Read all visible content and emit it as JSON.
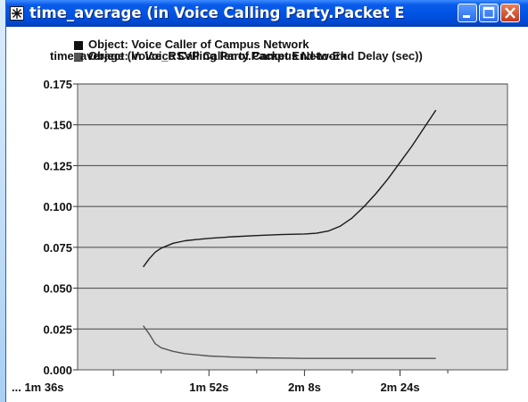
{
  "window": {
    "title": "time_average (in Voice Calling Party.Packet End...",
    "title_bar_color": "#0052e3"
  },
  "legend": [
    {
      "label": "Object: Voice Caller of Campus Network",
      "color": "#111111"
    },
    {
      "label": "Object: Voice_RSVP Caller of Campus Network",
      "color": "#555555"
    }
  ],
  "chart_data": {
    "type": "line",
    "title": "time_average (in Voice Calling Party.Packet End-to-End Delay (sec))",
    "xlabel": "",
    "ylabel": "",
    "xlim_seconds": [
      90,
      162
    ],
    "ylim": [
      0,
      0.175
    ],
    "x_ticks": [
      {
        "label": "... 1m 36s",
        "seconds": 96
      },
      {
        "label": "1m 52s",
        "seconds": 112
      },
      {
        "label": "2m 8s",
        "seconds": 128
      },
      {
        "label": "2m 24s",
        "seconds": 144
      }
    ],
    "y_ticks": [
      "0.000",
      "0.025",
      "0.050",
      "0.075",
      "0.100",
      "0.125",
      "0.150",
      "0.175"
    ],
    "grid": true,
    "plot_background": "#dcdcdc",
    "series": [
      {
        "name": "Object: Voice Caller of Campus Network",
        "color": "#1a1a1a",
        "x": [
          101,
          102,
          103,
          104,
          106,
          108,
          110,
          112,
          116,
          120,
          124,
          128,
          130,
          132,
          134,
          136,
          138,
          140,
          142,
          144,
          146,
          148,
          150
        ],
        "y": [
          0.063,
          0.068,
          0.072,
          0.0745,
          0.0775,
          0.079,
          0.0798,
          0.0805,
          0.0815,
          0.0822,
          0.0828,
          0.0832,
          0.0836,
          0.085,
          0.088,
          0.093,
          0.1,
          0.108,
          0.117,
          0.127,
          0.137,
          0.148,
          0.159
        ]
      },
      {
        "name": "Object: Voice_RSVP Caller of Campus Network",
        "color": "#555555",
        "x": [
          101,
          102,
          103,
          104,
          106,
          108,
          110,
          112,
          116,
          120,
          124,
          128,
          132,
          136,
          140,
          144,
          148,
          150
        ],
        "y": [
          0.027,
          0.022,
          0.016,
          0.0135,
          0.0113,
          0.0099,
          0.0092,
          0.0085,
          0.0078,
          0.0074,
          0.0072,
          0.007,
          0.007,
          0.007,
          0.007,
          0.007,
          0.007,
          0.007
        ]
      }
    ]
  }
}
